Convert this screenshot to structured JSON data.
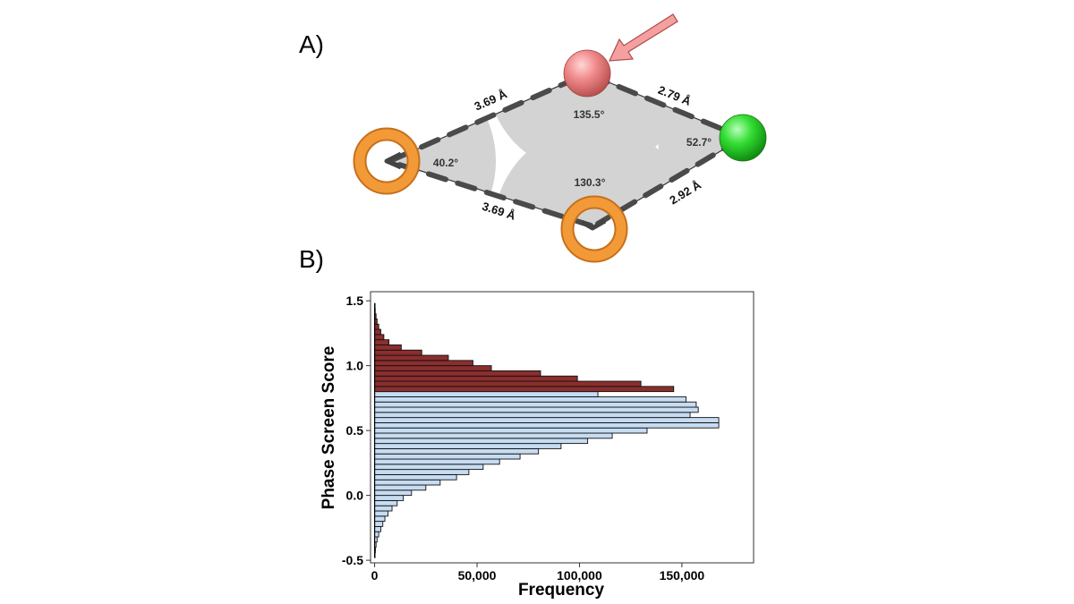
{
  "panel_a": {
    "label": "A)",
    "distances": [
      "3.69 Å",
      "2.79 Å",
      "3.69 Å",
      "2.92 Å"
    ],
    "angles": [
      "135.5°",
      "40.2°",
      "52.7°",
      "130.3°"
    ],
    "colors": {
      "top_sphere": "#f08a8a",
      "right_sphere": "#33dd33",
      "ring": "#f0922e",
      "wedge": "#d3d3d3",
      "arrow": "#f5a0a0"
    },
    "icons": [
      "arrow-icon",
      "red-sphere-icon",
      "green-sphere-icon",
      "orange-ring-icon"
    ]
  },
  "panel_b": {
    "label": "B)"
  },
  "chart_data": {
    "type": "bar",
    "orientation": "horizontal",
    "xlabel": "Frequency",
    "ylabel": "Phase Screen Score",
    "xlim": [
      -2000,
      185000
    ],
    "ylim": [
      -0.52,
      1.57
    ],
    "xticks": [
      0,
      50000,
      100000,
      150000
    ],
    "xtick_labels": [
      "0",
      "50,000",
      "100,000",
      "150,000"
    ],
    "yticks": [
      -0.5,
      0.0,
      0.5,
      1.0,
      1.5
    ],
    "ytick_labels": [
      "-0.5",
      "0.0",
      "0.5",
      "1.0",
      "1.5"
    ],
    "bin_width": 0.04,
    "bin_start": -0.48,
    "series": [
      {
        "bin_range": [
          -0.48,
          0.8
        ],
        "color": "#c6dcf2",
        "values": [
          200,
          400,
          700,
          1200,
          2000,
          3000,
          4000,
          5000,
          6500,
          8500,
          11000,
          14000,
          18000,
          25000,
          32000,
          40000,
          46000,
          53000,
          61000,
          71000,
          80000,
          91000,
          104000,
          116000,
          133000,
          168000,
          168000,
          154000,
          158000,
          157000,
          152000,
          109000
        ]
      },
      {
        "bin_range": [
          0.8,
          1.48
        ],
        "color": "#8b2e2e",
        "values": [
          146000,
          130000,
          99000,
          81000,
          57000,
          48000,
          36000,
          23000,
          13000,
          7000,
          4500,
          3000,
          2000,
          1200,
          700,
          300,
          150
        ]
      }
    ],
    "grid": false
  }
}
